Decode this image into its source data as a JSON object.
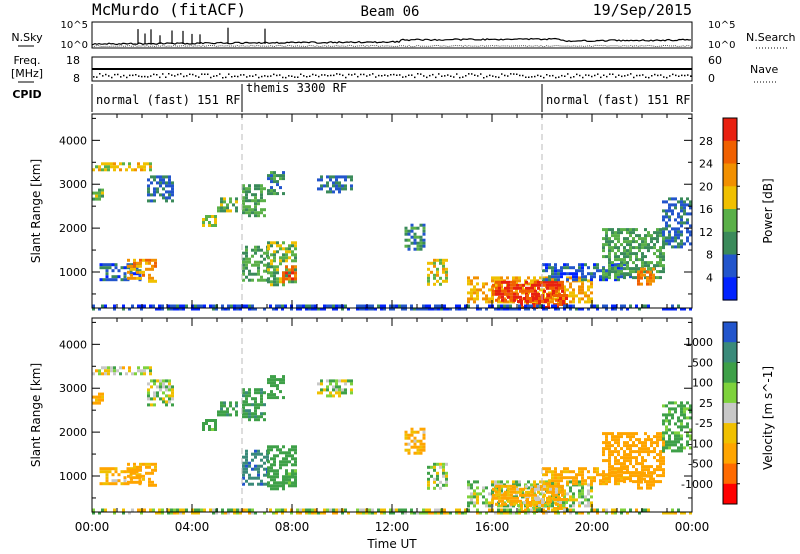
{
  "header": {
    "title": "McMurdo (fitACF)",
    "beam": "Beam 06",
    "date": "19/Sep/2015"
  },
  "panel_labels": {
    "nsky": "N.Sky",
    "freq": "Freq.",
    "freq_unit": "[MHz]",
    "cpid": "CPID",
    "nsearch": "N.Search",
    "nave": "Nave",
    "nsky_ticks": [
      "10^5",
      "10^0"
    ],
    "nsearch_ticks": [
      "10^5",
      "10^0"
    ],
    "freq_ticks": [
      "18",
      "8"
    ],
    "nave_ticks": [
      "60",
      "0"
    ]
  },
  "cpid_segments": [
    {
      "label": "normal (fast) 151 RF",
      "start_hour": 0.0,
      "end_hour": 6.0
    },
    {
      "label": "themis 3300 RF",
      "start_hour": 6.0,
      "end_hour": 18.0
    },
    {
      "label": "normal (fast) 151 RF",
      "start_hour": 18.0,
      "end_hour": 24.0
    }
  ],
  "colors": {
    "power": [
      "#0022ff",
      "#2255cc",
      "#3a8a5a",
      "#5ab048",
      "#f0c000",
      "#f29000",
      "#f06000",
      "#e82010"
    ],
    "velocity": [
      "#ff0000",
      "#ff6a00",
      "#ffa500",
      "#f0c000",
      "#c8c8c8",
      "#7ed23c",
      "#3ea048",
      "#3a8a7a",
      "#2255cc"
    ],
    "cpid_divider": "#bbbbbb"
  },
  "chart_data": [
    {
      "type": "heatmap",
      "name": "power",
      "ylabel": "Slant Range [km]",
      "xlabel": "Time UT",
      "xlim": [
        0,
        24
      ],
      "ylim": [
        180,
        4600
      ],
      "xticks": [
        "00:00",
        "04:00",
        "08:00",
        "12:00",
        "16:00",
        "20:00",
        "00:00"
      ],
      "yticks": [
        1000,
        2000,
        3000,
        4000
      ],
      "colorbar": {
        "label": "Power [dB]",
        "ticks": [
          "4",
          "8",
          "12",
          "16",
          "20",
          "24",
          "28"
        ],
        "range": [
          0,
          32
        ]
      },
      "regions": [
        {
          "t": [
            0.0,
            2.4
          ],
          "r": [
            3350,
            3500
          ],
          "v": 18
        },
        {
          "t": [
            0.0,
            0.4
          ],
          "r": [
            2650,
            2900
          ],
          "v": 14
        },
        {
          "t": [
            0.3,
            1.9
          ],
          "r": [
            800,
            1200
          ],
          "v": 6
        },
        {
          "t": [
            1.4,
            2.6
          ],
          "r": [
            780,
            1300
          ],
          "v": 22
        },
        {
          "t": [
            2.2,
            3.2
          ],
          "r": [
            2600,
            3200
          ],
          "v": 8
        },
        {
          "t": [
            4.4,
            4.9
          ],
          "r": [
            2050,
            2300
          ],
          "v": 16
        },
        {
          "t": [
            5.0,
            5.8
          ],
          "r": [
            2400,
            2700
          ],
          "v": 14
        },
        {
          "t": [
            6.0,
            6.9
          ],
          "r": [
            2300,
            3000
          ],
          "v": 12
        },
        {
          "t": [
            6.0,
            7.0
          ],
          "r": [
            800,
            1600
          ],
          "v": 12
        },
        {
          "t": [
            7.0,
            8.2
          ],
          "r": [
            700,
            1700
          ],
          "v": 14
        },
        {
          "t": [
            7.6,
            8.1
          ],
          "r": [
            800,
            1150
          ],
          "v": 26
        },
        {
          "t": [
            7.0,
            7.7
          ],
          "r": [
            2800,
            3300
          ],
          "v": 10
        },
        {
          "t": [
            9.0,
            10.4
          ],
          "r": [
            2800,
            3200
          ],
          "v": 8
        },
        {
          "t": [
            12.5,
            13.3
          ],
          "r": [
            1500,
            2100
          ],
          "v": 10
        },
        {
          "t": [
            13.4,
            14.2
          ],
          "r": [
            700,
            1300
          ],
          "v": 18
        },
        {
          "t": [
            15.0,
            20.0
          ],
          "r": [
            300,
            900
          ],
          "v": 20
        },
        {
          "t": [
            16.0,
            18.8
          ],
          "r": [
            350,
            800
          ],
          "v": 28
        },
        {
          "t": [
            17.0,
            19.0
          ],
          "r": [
            200,
            500
          ],
          "v": 29
        },
        {
          "t": [
            18.0,
            21.5
          ],
          "r": [
            800,
            1200
          ],
          "v": 6
        },
        {
          "t": [
            20.4,
            22.9
          ],
          "r": [
            900,
            2000
          ],
          "v": 12
        },
        {
          "t": [
            21.8,
            22.5
          ],
          "r": [
            750,
            1100
          ],
          "v": 24
        },
        {
          "t": [
            22.8,
            23.9
          ],
          "r": [
            1600,
            2700
          ],
          "v": 8
        },
        {
          "t": [
            0.0,
            24.0
          ],
          "r": [
            180,
            260
          ],
          "v": 5
        }
      ]
    },
    {
      "type": "heatmap",
      "name": "velocity",
      "ylabel": "Slant Range [km]",
      "xlabel": "Time UT",
      "xlim": [
        0,
        24
      ],
      "ylim": [
        180,
        4600
      ],
      "xticks": [
        "00:00",
        "04:00",
        "08:00",
        "12:00",
        "16:00",
        "20:00",
        "00:00"
      ],
      "yticks": [
        1000,
        2000,
        3000,
        4000
      ],
      "colorbar": {
        "label": "Velocity [m s^-1]",
        "ticks": [
          "1000",
          "500",
          "100",
          "25",
          "-25",
          "-100",
          "-500",
          "-1000"
        ],
        "range": [
          -1200,
          1200
        ]
      },
      "regions": [
        {
          "t": [
            0.0,
            2.4
          ],
          "r": [
            3350,
            3500
          ],
          "v": 0
        },
        {
          "t": [
            0.0,
            0.4
          ],
          "r": [
            2650,
            2900
          ],
          "v": -200
        },
        {
          "t": [
            0.3,
            1.9
          ],
          "r": [
            800,
            1200
          ],
          "v": -150
        },
        {
          "t": [
            1.4,
            2.6
          ],
          "r": [
            780,
            1300
          ],
          "v": -200
        },
        {
          "t": [
            2.2,
            3.2
          ],
          "r": [
            2600,
            3200
          ],
          "v": 60
        },
        {
          "t": [
            4.4,
            4.9
          ],
          "r": [
            2050,
            2300
          ],
          "v": 200
        },
        {
          "t": [
            5.0,
            5.8
          ],
          "r": [
            2400,
            2700
          ],
          "v": 400
        },
        {
          "t": [
            6.0,
            6.9
          ],
          "r": [
            2300,
            3000
          ],
          "v": 400
        },
        {
          "t": [
            6.0,
            7.0
          ],
          "r": [
            800,
            1600
          ],
          "v": 900
        },
        {
          "t": [
            7.0,
            8.2
          ],
          "r": [
            700,
            1700
          ],
          "v": 300
        },
        {
          "t": [
            7.6,
            8.1
          ],
          "r": [
            800,
            1150
          ],
          "v": 200
        },
        {
          "t": [
            7.0,
            7.7
          ],
          "r": [
            2800,
            3300
          ],
          "v": 300
        },
        {
          "t": [
            9.0,
            10.4
          ],
          "r": [
            2800,
            3200
          ],
          "v": 50
        },
        {
          "t": [
            12.5,
            13.3
          ],
          "r": [
            1500,
            2100
          ],
          "v": -150
        },
        {
          "t": [
            13.4,
            14.2
          ],
          "r": [
            700,
            1300
          ],
          "v": 80
        },
        {
          "t": [
            15.0,
            20.0
          ],
          "r": [
            300,
            900
          ],
          "v": 60
        },
        {
          "t": [
            16.0,
            18.8
          ],
          "r": [
            350,
            800
          ],
          "v": -150
        },
        {
          "t": [
            17.0,
            19.0
          ],
          "r": [
            200,
            500
          ],
          "v": -80
        },
        {
          "t": [
            18.0,
            21.5
          ],
          "r": [
            800,
            1200
          ],
          "v": -200
        },
        {
          "t": [
            20.4,
            22.9
          ],
          "r": [
            900,
            2000
          ],
          "v": -300
        },
        {
          "t": [
            21.8,
            22.5
          ],
          "r": [
            750,
            1100
          ],
          "v": -300
        },
        {
          "t": [
            22.8,
            23.9
          ],
          "r": [
            1600,
            2700
          ],
          "v": 200
        },
        {
          "t": [
            0.0,
            24.0
          ],
          "r": [
            180,
            260
          ],
          "v": 10
        }
      ]
    }
  ]
}
